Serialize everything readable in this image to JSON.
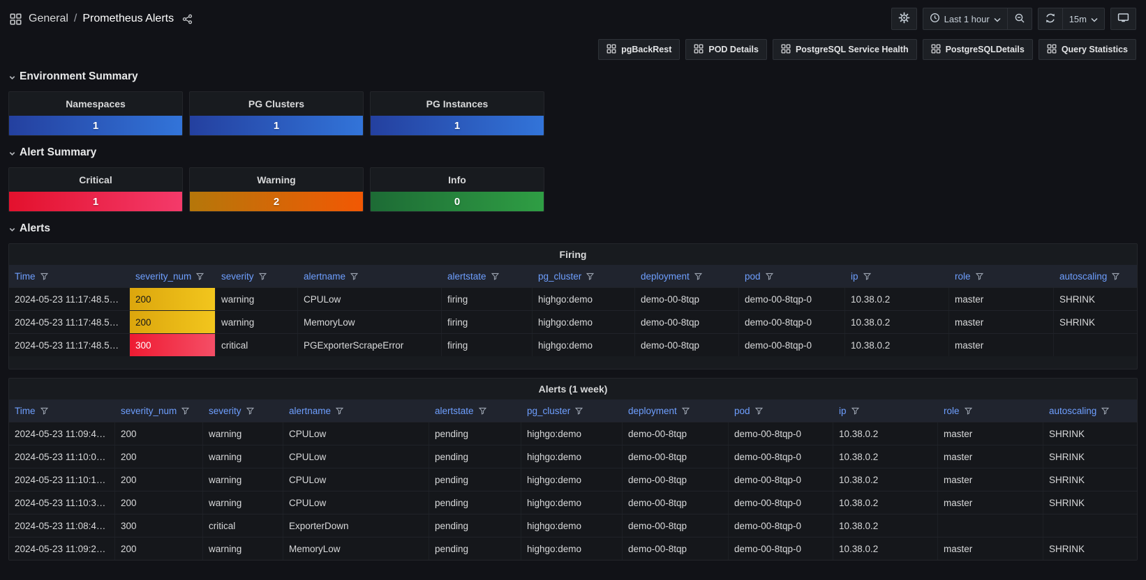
{
  "nav": {
    "breadcrumb": {
      "folder": "General",
      "separator": "/",
      "title": "Prometheus Alerts"
    },
    "controls": {
      "time_range_label": "Last 1 hour",
      "refresh_interval": "15m"
    }
  },
  "links": [
    {
      "label": "pgBackRest"
    },
    {
      "label": "POD Details"
    },
    {
      "label": "PostgreSQL Service Health"
    },
    {
      "label": "PostgreSQLDetails"
    },
    {
      "label": "Query Statistics"
    }
  ],
  "sections": {
    "environment": {
      "title": "Environment Summary",
      "stats": [
        {
          "title": "Namespaces",
          "value": "1",
          "from": "#24409f",
          "to": "#3274d9"
        },
        {
          "title": "PG Clusters",
          "value": "1",
          "from": "#24409f",
          "to": "#3274d9"
        },
        {
          "title": "PG Instances",
          "value": "1",
          "from": "#24409f",
          "to": "#3274d9"
        }
      ]
    },
    "alert_summary": {
      "title": "Alert Summary",
      "stats": [
        {
          "title": "Critical",
          "value": "1",
          "from": "#e3112d",
          "to": "#f43a6a"
        },
        {
          "title": "Warning",
          "value": "2",
          "from": "#b5770a",
          "to": "#f25804"
        },
        {
          "title": "Info",
          "value": "0",
          "from": "#1d6b35",
          "to": "#2f9e44"
        }
      ]
    },
    "alerts": {
      "title": "Alerts"
    }
  },
  "tables": [
    {
      "title": "Firing",
      "columns": [
        "Time",
        "severity_num",
        "severity",
        "alertname",
        "alertstate",
        "pg_cluster",
        "deployment",
        "pod",
        "ip",
        "role",
        "autoscaling"
      ],
      "rows": [
        {
          "severity": "yellow",
          "cells": [
            "2024-05-23 11:17:48.5…",
            "200",
            "warning",
            "CPULow",
            "firing",
            "highgo:demo",
            "demo-00-8tqp",
            "demo-00-8tqp-0",
            "10.38.0.2",
            "master",
            "SHRINK"
          ]
        },
        {
          "severity": "yellow",
          "cells": [
            "2024-05-23 11:17:48.5…",
            "200",
            "warning",
            "MemoryLow",
            "firing",
            "highgo:demo",
            "demo-00-8tqp",
            "demo-00-8tqp-0",
            "10.38.0.2",
            "master",
            "SHRINK"
          ]
        },
        {
          "severity": "red",
          "cells": [
            "2024-05-23 11:17:48.5…",
            "300",
            "critical",
            "PGExporterScrapeError",
            "firing",
            "highgo:demo",
            "demo-00-8tqp",
            "demo-00-8tqp-0",
            "10.38.0.2",
            "master",
            ""
          ]
        }
      ]
    },
    {
      "title": "Alerts (1 week)",
      "columns": [
        "Time",
        "severity_num",
        "severity",
        "alertname",
        "alertstate",
        "pg_cluster",
        "deployment",
        "pod",
        "ip",
        "role",
        "autoscaling"
      ],
      "rows": [
        {
          "severity": null,
          "cells": [
            "2024-05-23 11:09:4…",
            "200",
            "warning",
            "CPULow",
            "pending",
            "highgo:demo",
            "demo-00-8tqp",
            "demo-00-8tqp-0",
            "10.38.0.2",
            "master",
            "SHRINK"
          ]
        },
        {
          "severity": null,
          "cells": [
            "2024-05-23 11:10:0…",
            "200",
            "warning",
            "CPULow",
            "pending",
            "highgo:demo",
            "demo-00-8tqp",
            "demo-00-8tqp-0",
            "10.38.0.2",
            "master",
            "SHRINK"
          ]
        },
        {
          "severity": null,
          "cells": [
            "2024-05-23 11:10:1…",
            "200",
            "warning",
            "CPULow",
            "pending",
            "highgo:demo",
            "demo-00-8tqp",
            "demo-00-8tqp-0",
            "10.38.0.2",
            "master",
            "SHRINK"
          ]
        },
        {
          "severity": null,
          "cells": [
            "2024-05-23 11:10:3…",
            "200",
            "warning",
            "CPULow",
            "pending",
            "highgo:demo",
            "demo-00-8tqp",
            "demo-00-8tqp-0",
            "10.38.0.2",
            "master",
            "SHRINK"
          ]
        },
        {
          "severity": null,
          "cells": [
            "2024-05-23 11:08:4…",
            "300",
            "critical",
            "ExporterDown",
            "pending",
            "highgo:demo",
            "demo-00-8tqp",
            "demo-00-8tqp-0",
            "10.38.0.2",
            "",
            ""
          ]
        },
        {
          "severity": null,
          "cells": [
            "2024-05-23 11:09:2…",
            "200",
            "warning",
            "MemoryLow",
            "pending",
            "highgo:demo",
            "demo-00-8tqp",
            "demo-00-8tqp-0",
            "10.38.0.2",
            "master",
            "SHRINK"
          ]
        }
      ]
    }
  ],
  "theme": {
    "accent_blue": "#6e9fff",
    "sev_yellow_from": "#dca60d",
    "sev_yellow_to": "#f2c61d",
    "sev_red_from": "#ee1b32",
    "sev_red_to": "#f54e66"
  }
}
